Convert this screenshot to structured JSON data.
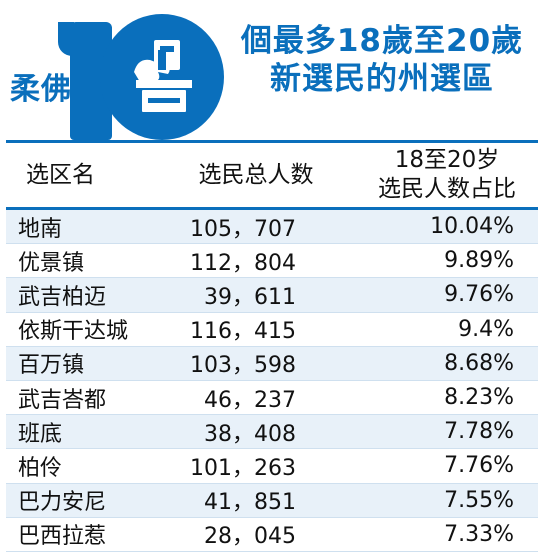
{
  "header": {
    "prefix": "柔佛",
    "badge_number": "10",
    "title_line1": "個最多18歲至20歲",
    "title_line2": "新選民的州選區",
    "icon": "ballot-box-icon"
  },
  "colors": {
    "accent": "#0a6fbc",
    "row_alt": "#e8f1f9"
  },
  "chart_data": {
    "type": "table",
    "columns": [
      "选区名",
      "选民总人数",
      "18至20岁\n选民人数占比"
    ],
    "rows": [
      {
        "name": "地南",
        "voters": "105，707",
        "share": "10.04%"
      },
      {
        "name": "优景镇",
        "voters": "112，804",
        "share": "9.89%"
      },
      {
        "name": "武吉柏迈",
        "voters": "39，611",
        "share": "9.76%"
      },
      {
        "name": "依斯干达城",
        "voters": "116，415",
        "share": "9.4%"
      },
      {
        "name": "百万镇",
        "voters": "103，598",
        "share": "8.68%"
      },
      {
        "name": "武吉峇都",
        "voters": "46，237",
        "share": "8.23%"
      },
      {
        "name": "班底",
        "voters": "38，408",
        "share": "7.78%"
      },
      {
        "name": "柏伶",
        "voters": "101，263",
        "share": "7.76%"
      },
      {
        "name": "巴力安尼",
        "voters": "41，851",
        "share": "7.55%"
      },
      {
        "name": "巴西拉惹",
        "voters": "28，045",
        "share": "7.33%"
      }
    ]
  }
}
